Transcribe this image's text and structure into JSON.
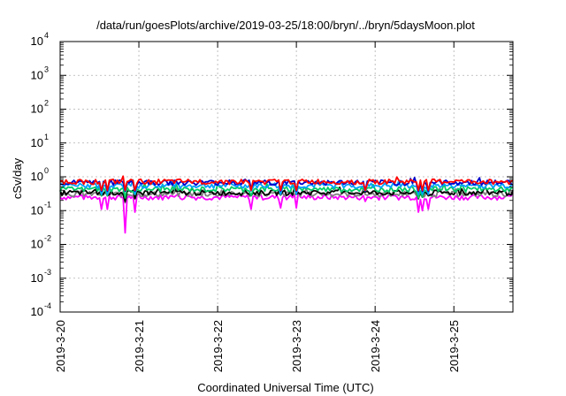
{
  "chart_data": {
    "type": "line",
    "title": "/data/run/goesPlots/archive/2019-03-25/18:00/bryn/../bryn/5daysMoon.plot",
    "xlabel": "Coordinated Universal Time (UTC)",
    "ylabel": "cSv/day",
    "yscale": "log",
    "ylim": [
      0.0001,
      10000
    ],
    "y_ticks": [
      {
        "value": 0.0001,
        "base": "10",
        "exp": "-4"
      },
      {
        "value": 0.001,
        "base": "10",
        "exp": "-3"
      },
      {
        "value": 0.01,
        "base": "10",
        "exp": "-2"
      },
      {
        "value": 0.1,
        "base": "10",
        "exp": "-1"
      },
      {
        "value": 1,
        "base": "10",
        "exp": "0"
      },
      {
        "value": 10,
        "base": "10",
        "exp": "1"
      },
      {
        "value": 100,
        "base": "10",
        "exp": "2"
      },
      {
        "value": 1000,
        "base": "10",
        "exp": "3"
      },
      {
        "value": 10000,
        "base": "10",
        "exp": "4"
      }
    ],
    "xlim": [
      "2019-03-20T00:00",
      "2019-03-25T18:00"
    ],
    "x_ticks": [
      "2019-3-20",
      "2019-3-21",
      "2019-3-22",
      "2019-3-23",
      "2019-3-24",
      "2019-3-25"
    ],
    "grid": true,
    "series": [
      {
        "color": "#ff0000",
        "level": 0.72
      },
      {
        "color": "#0000cc",
        "level": 0.68
      },
      {
        "color": "#00a0ff",
        "level": 0.55
      },
      {
        "color": "#00cc66",
        "level": 0.43
      },
      {
        "color": "#000000",
        "level": 0.34
      },
      {
        "color": "#808080",
        "level": 0.31
      },
      {
        "color": "#ff00ff",
        "level": 0.25
      }
    ],
    "dips": [
      {
        "x": "2019-03-20T12:30",
        "y": 0.11
      },
      {
        "x": "2019-03-20T14:30",
        "y": 0.11
      },
      {
        "x": "2019-03-20T20:00",
        "y": 0.022
      },
      {
        "x": "2019-03-20T23:00",
        "y": 0.09
      },
      {
        "x": "2019-03-22T10:00",
        "y": 0.11
      },
      {
        "x": "2019-03-22T19:00",
        "y": 0.12
      },
      {
        "x": "2019-03-23T00:00",
        "y": 0.12
      },
      {
        "x": "2019-03-23T21:00",
        "y": 0.15
      },
      {
        "x": "2019-03-24T13:00",
        "y": 0.09
      },
      {
        "x": "2019-03-24T14:30",
        "y": 0.1
      },
      {
        "x": "2019-03-24T16:00",
        "y": 0.11
      }
    ]
  }
}
